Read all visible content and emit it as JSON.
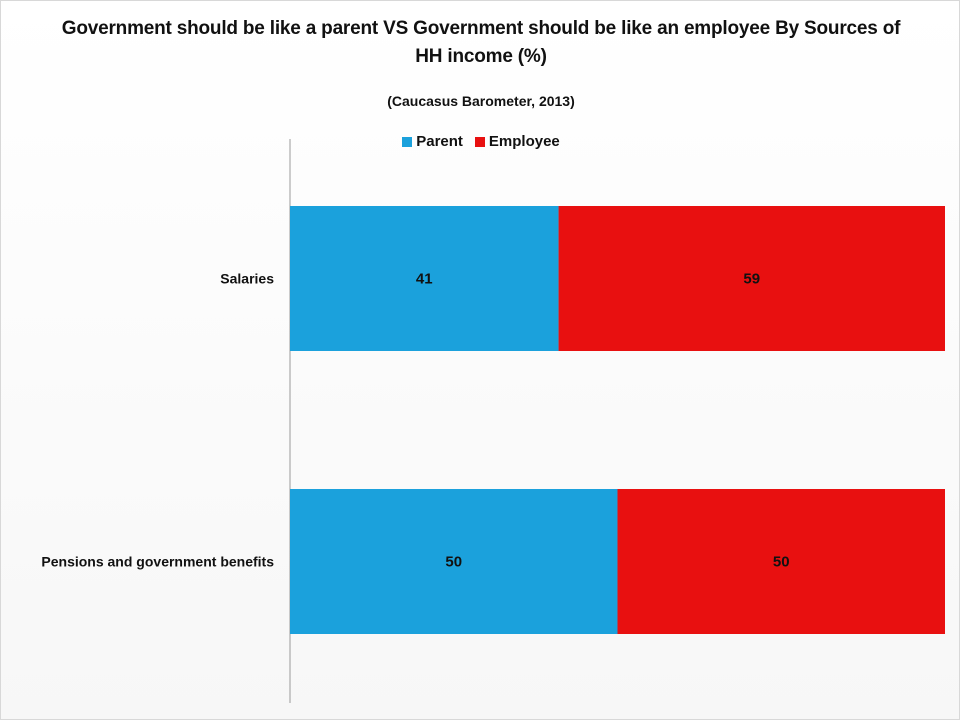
{
  "chart_data": {
    "type": "bar",
    "orientation": "horizontal",
    "stacked": true,
    "title": "Government should be like a parent VS Government should be like an employee By Sources of HH income (%)",
    "subtitle": "(Caucasus Barometer, 2013)",
    "categories": [
      "Salaries",
      "Pensions and government benefits"
    ],
    "series": [
      {
        "name": "Parent",
        "color": "#1ba1dc",
        "values": [
          41,
          50
        ]
      },
      {
        "name": "Employee",
        "color": "#e81010",
        "values": [
          59,
          50
        ]
      }
    ],
    "xlim": [
      0,
      100
    ],
    "legend_position": "top",
    "grid": false
  }
}
